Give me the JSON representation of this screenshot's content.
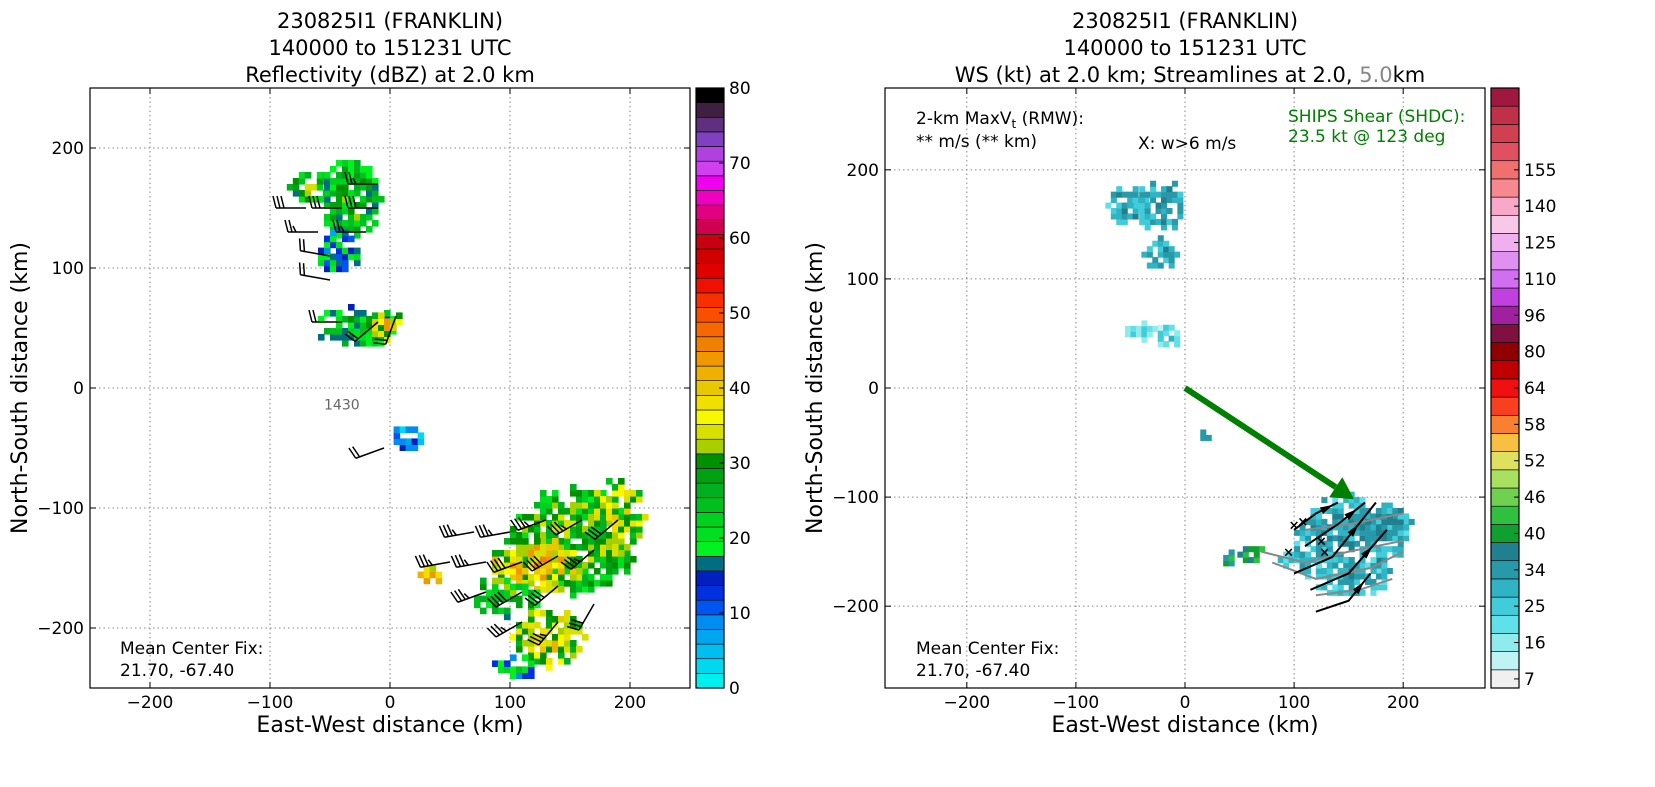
{
  "chart_data": [
    {
      "type": "heatmap",
      "title_lines": [
        "230825I1 (FRANKLIN)",
        "140000 to 151231 UTC",
        "Reflectivity (dBZ) at 2.0 km"
      ],
      "xlabel": "East-West distance (km)",
      "ylabel": "North-South distance (km)",
      "xlim": [
        -250,
        250
      ],
      "ylim": [
        -250,
        250
      ],
      "x_ticks": [
        -200,
        -100,
        0,
        100,
        200
      ],
      "y_ticks": [
        -200,
        -100,
        0,
        100,
        200
      ],
      "x_tick_labels": [
        "−200",
        "−100",
        "0",
        "100",
        "200"
      ],
      "y_tick_labels": [
        "−200",
        "−100",
        "0",
        "100",
        "200"
      ],
      "grid": true,
      "annotation_time": "1430",
      "mean_center_label": "Mean Center Fix:",
      "mean_center_value": "21.70, -67.40",
      "colorbar": {
        "min": 0,
        "max": 80,
        "tick_values": [
          0,
          10,
          20,
          30,
          40,
          50,
          60,
          70,
          80
        ],
        "tick_labels": [
          "0",
          "10",
          "20",
          "30",
          "40",
          "50",
          "60",
          "70",
          "80"
        ],
        "colors": [
          "#00f0f0",
          "#00d8f0",
          "#00bff0",
          "#00a6f0",
          "#008cf0",
          "#0055f0",
          "#0030e0",
          "#0020c0",
          "#006e80",
          "#00f020",
          "#00e020",
          "#00d020",
          "#00c020",
          "#00b020",
          "#00a010",
          "#009000",
          "#a8d000",
          "#d8e000",
          "#f8f800",
          "#f0e000",
          "#e8c800",
          "#f0b000",
          "#f09800",
          "#f08000",
          "#f86800",
          "#f85000",
          "#f83000",
          "#f01000",
          "#e00000",
          "#d00000",
          "#c80010",
          "#d00050",
          "#e00080",
          "#f000c0",
          "#f000f0",
          "#d040f0",
          "#b040e0",
          "#8040c0",
          "#603080",
          "#402040",
          "#000000"
        ]
      },
      "echo_regions": [
        {
          "x": -68,
          "y": 165,
          "rx": 18,
          "ry": 15,
          "dbz": 22
        },
        {
          "x": -35,
          "y": 155,
          "rx": 25,
          "ry": 35,
          "dbz": 20
        },
        {
          "x": -45,
          "y": 110,
          "rx": 20,
          "ry": 18,
          "dbz": 12
        },
        {
          "x": -30,
          "y": 48,
          "rx": 35,
          "ry": 18,
          "dbz": 18
        },
        {
          "x": -5,
          "y": 50,
          "rx": 15,
          "ry": 12,
          "dbz": 32
        },
        {
          "x": 12,
          "y": -45,
          "rx": 14,
          "ry": 12,
          "dbz": 5
        },
        {
          "x": 150,
          "y": -130,
          "rx": 55,
          "ry": 45,
          "dbz": 24
        },
        {
          "x": 185,
          "y": -110,
          "rx": 25,
          "ry": 35,
          "dbz": 28
        },
        {
          "x": 120,
          "y": -150,
          "rx": 40,
          "ry": 25,
          "dbz": 34
        },
        {
          "x": 95,
          "y": -175,
          "rx": 30,
          "ry": 18,
          "dbz": 22
        },
        {
          "x": 130,
          "y": -210,
          "rx": 30,
          "ry": 25,
          "dbz": 30
        },
        {
          "x": 100,
          "y": -235,
          "rx": 20,
          "ry": 12,
          "dbz": 12
        },
        {
          "x": 30,
          "y": -160,
          "rx": 12,
          "ry": 8,
          "dbz": 36
        }
      ],
      "wind_barbs": [
        {
          "x": -70,
          "y": 150,
          "dir": 270,
          "kt": 30
        },
        {
          "x": -40,
          "y": 150,
          "dir": 270,
          "kt": 30
        },
        {
          "x": -10,
          "y": 150,
          "dir": 270,
          "kt": 30
        },
        {
          "x": -60,
          "y": 130,
          "dir": 270,
          "kt": 25
        },
        {
          "x": -20,
          "y": 130,
          "dir": 270,
          "kt": 25
        },
        {
          "x": -10,
          "y": 170,
          "dir": 270,
          "kt": 25
        },
        {
          "x": -50,
          "y": 110,
          "dir": 280,
          "kt": 20
        },
        {
          "x": -50,
          "y": 90,
          "dir": 280,
          "kt": 20
        },
        {
          "x": -40,
          "y": 55,
          "dir": 270,
          "kt": 20
        },
        {
          "x": -10,
          "y": 55,
          "dir": 230,
          "kt": 20
        },
        {
          "x": 5,
          "y": 60,
          "dir": 200,
          "kt": 20
        },
        {
          "x": -5,
          "y": -50,
          "dir": 250,
          "kt": 20
        },
        {
          "x": 70,
          "y": -120,
          "dir": 260,
          "kt": 35
        },
        {
          "x": 100,
          "y": -120,
          "dir": 260,
          "kt": 35
        },
        {
          "x": 130,
          "y": -110,
          "dir": 250,
          "kt": 35
        },
        {
          "x": 160,
          "y": -110,
          "dir": 240,
          "kt": 35
        },
        {
          "x": 190,
          "y": -110,
          "dir": 230,
          "kt": 30
        },
        {
          "x": 50,
          "y": -145,
          "dir": 260,
          "kt": 35
        },
        {
          "x": 80,
          "y": -145,
          "dir": 260,
          "kt": 35
        },
        {
          "x": 110,
          "y": -145,
          "dir": 250,
          "kt": 40
        },
        {
          "x": 140,
          "y": -140,
          "dir": 240,
          "kt": 40
        },
        {
          "x": 170,
          "y": -135,
          "dir": 230,
          "kt": 35
        },
        {
          "x": 80,
          "y": -170,
          "dir": 250,
          "kt": 35
        },
        {
          "x": 110,
          "y": -170,
          "dir": 240,
          "kt": 40
        },
        {
          "x": 140,
          "y": -165,
          "dir": 230,
          "kt": 40
        },
        {
          "x": 110,
          "y": -195,
          "dir": 240,
          "kt": 35
        },
        {
          "x": 140,
          "y": -195,
          "dir": 220,
          "kt": 35
        },
        {
          "x": 170,
          "y": -180,
          "dir": 210,
          "kt": 30
        }
      ]
    },
    {
      "type": "heatmap",
      "title_lines": [
        "230825I1 (FRANKLIN)",
        "140000 to 151231 UTC"
      ],
      "title_line3_parts": [
        "WS (kt) at 2.0 km; Streamlines at 2.0, ",
        "5.0",
        "km"
      ],
      "xlabel": "East-West distance (km)",
      "ylabel": "North-South distance (km)",
      "xlim": [
        -275,
        275
      ],
      "ylim": [
        -275,
        275
      ],
      "x_ticks": [
        -200,
        -100,
        0,
        100,
        200
      ],
      "y_ticks": [
        -200,
        -100,
        0,
        100,
        200
      ],
      "x_tick_labels": [
        "−200",
        "−100",
        "0",
        "100",
        "200"
      ],
      "y_tick_labels": [
        "−200",
        "−100",
        "0",
        "100",
        "200"
      ],
      "grid": true,
      "maxv_line1": "2-km MaxV",
      "maxv_sub": "t",
      "maxv_suffix": " (RMW):",
      "maxv_line2": "** m/s (** km)",
      "w_note": "X: w>6 m/s",
      "ships_label": "SHIPS Shear (SHDC):",
      "ships_value": "23.5 kt @ 123 deg",
      "shear_arrow": {
        "x0": 0,
        "y0": 0,
        "x1": 155,
        "y1": -102,
        "color": "#008000"
      },
      "mean_center_label": "Mean Center Fix:",
      "mean_center_value": "21.70, -67.40",
      "colorbar": {
        "min": 0,
        "max": 160,
        "tick_values": [
          7,
          16,
          25,
          34,
          40,
          46,
          52,
          58,
          64,
          80,
          96,
          110,
          125,
          140,
          155
        ],
        "tick_labels": [
          "7",
          "16",
          "25",
          "34",
          "40",
          "46",
          "52",
          "58",
          "64",
          "80",
          "96",
          "110",
          "125",
          "140",
          "155"
        ],
        "tick_slots": [
          0,
          2,
          4,
          6,
          8,
          10,
          12,
          14,
          16,
          18,
          20,
          22,
          24,
          26,
          28
        ],
        "colors": [
          "#f0f0f0",
          "#c0f4f4",
          "#90ecec",
          "#60e0e8",
          "#40ccd8",
          "#30b4c4",
          "#2899a8",
          "#208090",
          "#10a030",
          "#30c040",
          "#70d050",
          "#a8e060",
          "#e0e060",
          "#f8c040",
          "#f88030",
          "#f84020",
          "#f01010",
          "#c00000",
          "#900000",
          "#801040",
          "#a020a0",
          "#c040e0",
          "#d070f0",
          "#e090f0",
          "#f0b0f0",
          "#f8c8e8",
          "#f8a8c8",
          "#f88890",
          "#f07070",
          "#e05060",
          "#d04050",
          "#c03048",
          "#a01840"
        ]
      },
      "ws_regions": [
        {
          "x": -55,
          "y": 165,
          "rx": 18,
          "ry": 20,
          "kt": 24
        },
        {
          "x": -25,
          "y": 165,
          "rx": 22,
          "ry": 25,
          "kt": 26
        },
        {
          "x": -25,
          "y": 120,
          "rx": 15,
          "ry": 15,
          "kt": 24
        },
        {
          "x": -40,
          "y": 50,
          "rx": 20,
          "ry": 8,
          "kt": 12
        },
        {
          "x": -15,
          "y": 45,
          "rx": 15,
          "ry": 12,
          "kt": 14
        },
        {
          "x": 15,
          "y": -45,
          "rx": 6,
          "ry": 8,
          "kt": 24
        },
        {
          "x": 150,
          "y": -140,
          "rx": 55,
          "ry": 40,
          "kt": 24
        },
        {
          "x": 175,
          "y": -125,
          "rx": 30,
          "ry": 15,
          "kt": 28
        },
        {
          "x": 110,
          "y": -160,
          "rx": 25,
          "ry": 15,
          "kt": 22
        },
        {
          "x": 60,
          "y": -155,
          "rx": 12,
          "ry": 10,
          "kt": 40
        },
        {
          "x": 40,
          "y": -160,
          "rx": 10,
          "ry": 8,
          "kt": 34
        },
        {
          "x": 150,
          "y": -175,
          "rx": 35,
          "ry": 20,
          "kt": 22
        }
      ],
      "streamlines_2km": [
        [
          [
            100,
            -130
          ],
          [
            120,
            -115
          ],
          [
            140,
            -105
          ]
        ],
        [
          [
            110,
            -145
          ],
          [
            140,
            -125
          ],
          [
            165,
            -105
          ]
        ],
        [
          [
            100,
            -170
          ],
          [
            135,
            -155
          ],
          [
            175,
            -105
          ]
        ],
        [
          [
            115,
            -185
          ],
          [
            150,
            -170
          ],
          [
            185,
            -130
          ]
        ],
        [
          [
            120,
            -205
          ],
          [
            150,
            -195
          ],
          [
            170,
            -170
          ]
        ]
      ],
      "streamlines_5km": [
        [
          [
            70,
            -150
          ],
          [
            110,
            -160
          ],
          [
            150,
            -150
          ],
          [
            200,
            -140
          ]
        ],
        [
          [
            80,
            -160
          ],
          [
            120,
            -175
          ],
          [
            170,
            -165
          ],
          [
            200,
            -150
          ]
        ],
        [
          [
            110,
            -130
          ],
          [
            150,
            -125
          ],
          [
            200,
            -115
          ]
        ],
        [
          [
            120,
            -190
          ],
          [
            160,
            -185
          ],
          [
            190,
            -175
          ]
        ]
      ],
      "w_markers": [
        {
          "x": 100,
          "y": -125
        },
        {
          "x": 108,
          "y": -122
        },
        {
          "x": 125,
          "y": -140
        },
        {
          "x": 128,
          "y": -150
        },
        {
          "x": 95,
          "y": -150
        }
      ]
    }
  ]
}
